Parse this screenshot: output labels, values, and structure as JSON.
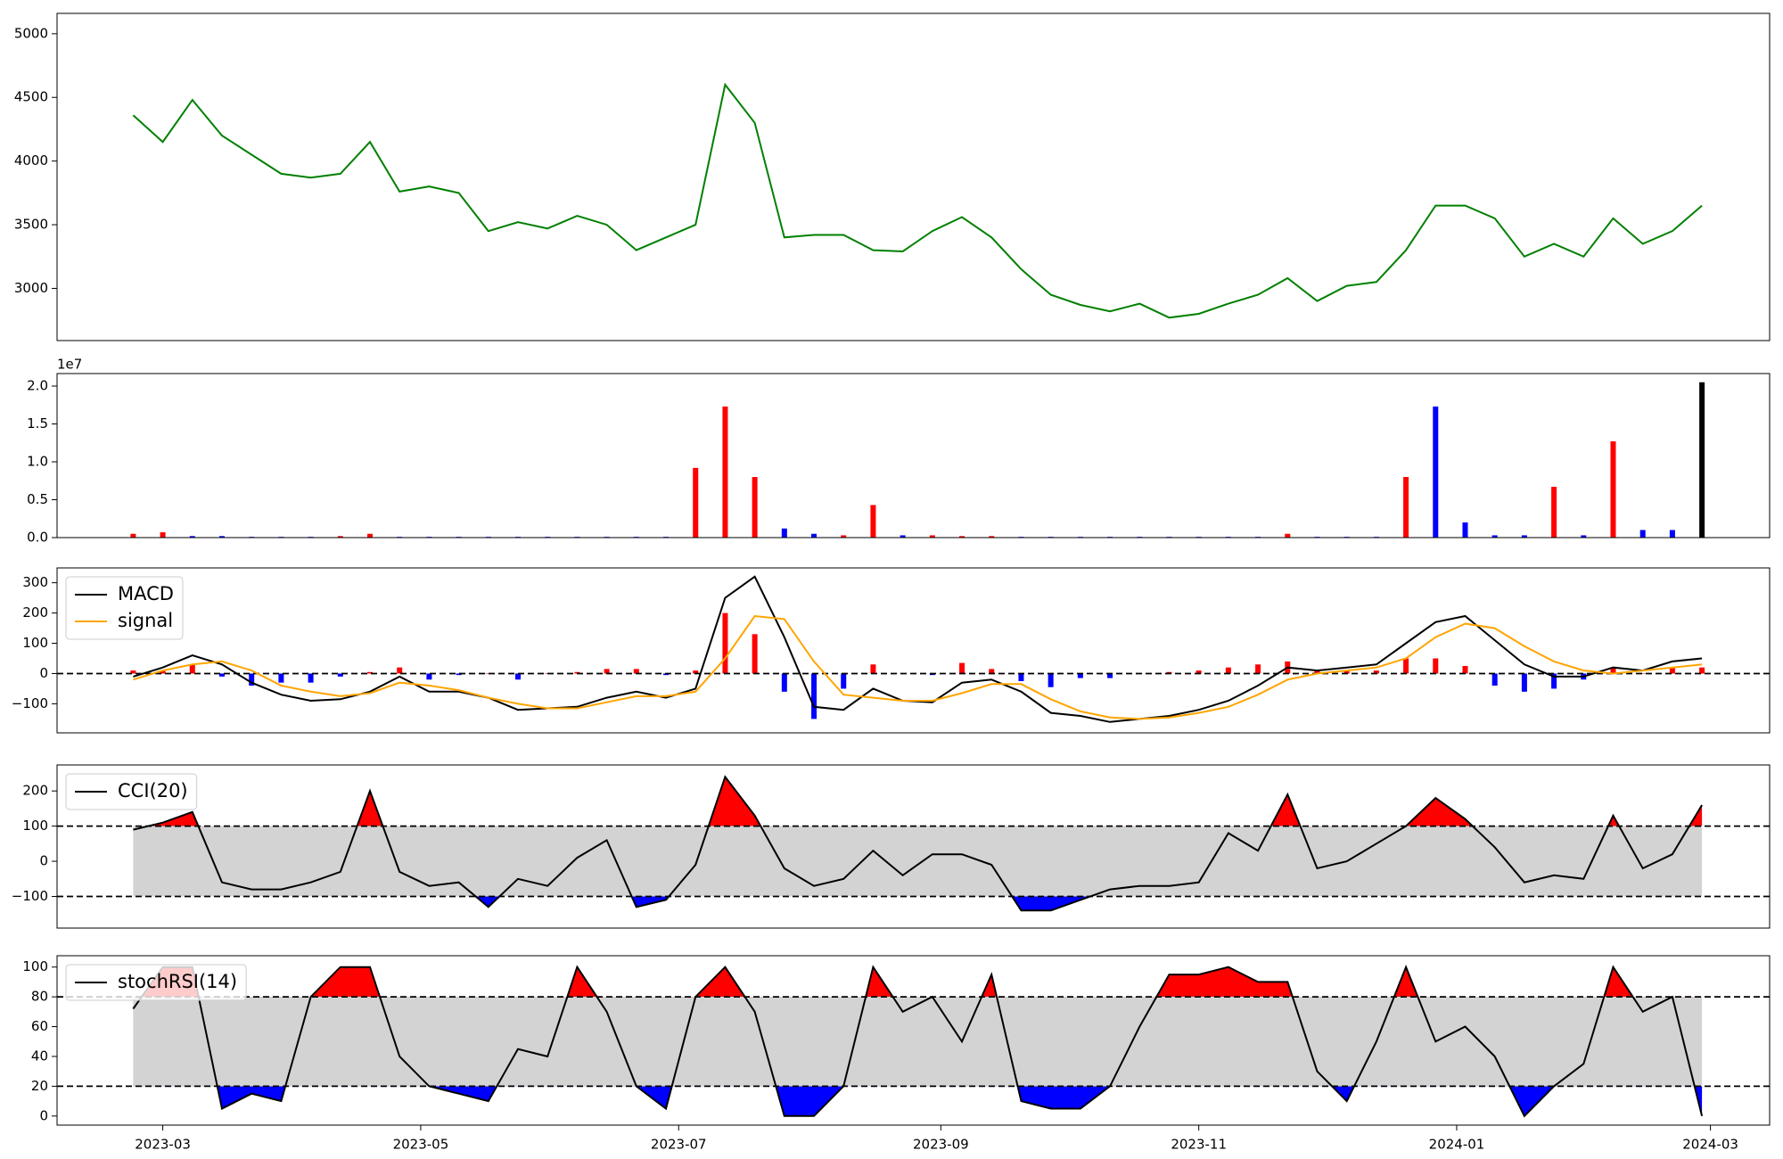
{
  "chart_data": [
    {
      "type": "line",
      "x": [
        "2023-02-22",
        "2023-03-01",
        "2023-03-08",
        "2023-03-15",
        "2023-03-22",
        "2023-03-29",
        "2023-04-05",
        "2023-04-12",
        "2023-04-19",
        "2023-04-26",
        "2023-05-03",
        "2023-05-10",
        "2023-05-17",
        "2023-05-24",
        "2023-05-31",
        "2023-06-07",
        "2023-06-14",
        "2023-06-21",
        "2023-06-28",
        "2023-07-05",
        "2023-07-12",
        "2023-07-19",
        "2023-07-26",
        "2023-08-02",
        "2023-08-09",
        "2023-08-16",
        "2023-08-23",
        "2023-08-30",
        "2023-09-06",
        "2023-09-13",
        "2023-09-20",
        "2023-09-27",
        "2023-10-04",
        "2023-10-11",
        "2023-10-18",
        "2023-10-25",
        "2023-11-01",
        "2023-11-08",
        "2023-11-15",
        "2023-11-22",
        "2023-11-29",
        "2023-12-06",
        "2023-12-13",
        "2023-12-20",
        "2023-12-27",
        "2024-01-03",
        "2024-01-10",
        "2024-01-17",
        "2024-01-24",
        "2024-01-31",
        "2024-02-07",
        "2024-02-14",
        "2024-02-21",
        "2024-02-28"
      ],
      "xlim": [
        "2023-02-04",
        "2024-03-15"
      ],
      "ylim": [
        2590,
        5160
      ],
      "yticks": [
        3000,
        3500,
        4000,
        4500,
        5000
      ],
      "series": [
        {
          "color": "green",
          "values": [
            4360,
            4150,
            4480,
            4200,
            4050,
            3900,
            3870,
            3900,
            4150,
            3760,
            3800,
            3750,
            3450,
            3520,
            3470,
            3570,
            3500,
            3300,
            3400,
            3500,
            4600,
            4300,
            3400,
            3420,
            3420,
            3300,
            3290,
            3450,
            3560,
            3400,
            3150,
            2950,
            2870,
            2820,
            2880,
            2770,
            2800,
            2880,
            2950,
            3080,
            2900,
            3020,
            3050,
            3300,
            3650,
            3650,
            3550,
            3250,
            3350,
            3250,
            3550,
            3350,
            3450,
            3650
          ]
        }
      ]
    },
    {
      "type": "bar",
      "x": [
        "2023-02-22",
        "2023-03-01",
        "2023-03-08",
        "2023-03-15",
        "2023-03-22",
        "2023-03-29",
        "2023-04-05",
        "2023-04-12",
        "2023-04-19",
        "2023-04-26",
        "2023-05-03",
        "2023-05-10",
        "2023-05-17",
        "2023-05-24",
        "2023-05-31",
        "2023-06-07",
        "2023-06-14",
        "2023-06-21",
        "2023-06-28",
        "2023-07-05",
        "2023-07-12",
        "2023-07-19",
        "2023-07-26",
        "2023-08-02",
        "2023-08-09",
        "2023-08-16",
        "2023-08-23",
        "2023-08-30",
        "2023-09-06",
        "2023-09-13",
        "2023-09-20",
        "2023-09-27",
        "2023-10-04",
        "2023-10-11",
        "2023-10-18",
        "2023-10-25",
        "2023-11-01",
        "2023-11-08",
        "2023-11-15",
        "2023-11-22",
        "2023-11-29",
        "2023-12-06",
        "2023-12-13",
        "2023-12-20",
        "2023-12-27",
        "2024-01-03",
        "2024-01-10",
        "2024-01-17",
        "2024-01-24",
        "2024-01-31",
        "2024-02-07",
        "2024-02-14",
        "2024-02-21",
        "2024-02-28"
      ],
      "xlim": [
        "2023-02-04",
        "2024-03-15"
      ],
      "ylim": [
        0,
        2.165
      ],
      "yticks": [
        {
          "value": 0,
          "label": "0.0"
        },
        {
          "value": 0.5,
          "label": "0.5"
        },
        {
          "value": 1,
          "label": "1.0"
        },
        {
          "value": 1.5,
          "label": "1.5"
        },
        {
          "value": 2,
          "label": "2.0"
        }
      ],
      "offset_label": "1e7",
      "series": [
        {
          "type": "bar",
          "values": [
            0.05,
            0.07,
            0.02,
            0.02,
            0.01,
            0.01,
            0.01,
            0.02,
            0.05,
            0.01,
            0.01,
            0.01,
            0.01,
            0.01,
            0.01,
            0.01,
            0.01,
            0.01,
            0.01,
            0.92,
            1.73,
            0.8,
            0.12,
            0.05,
            0.03,
            0.43,
            0.03,
            0.03,
            0.02,
            0.02,
            0.01,
            0.01,
            0.01,
            0.01,
            0.01,
            0.01,
            0.01,
            0.01,
            0.01,
            0.05,
            0.01,
            0.01,
            0.01,
            0.8,
            1.73,
            0.2,
            0.03,
            0.03,
            0.67,
            0.03,
            1.27,
            0.1,
            0.1,
            2.05
          ],
          "colors": [
            "red",
            "red",
            "blue",
            "blue",
            "blue",
            "blue",
            "blue",
            "red",
            "red",
            "blue",
            "blue",
            "blue",
            "blue",
            "blue",
            "blue",
            "blue",
            "blue",
            "blue",
            "blue",
            "red",
            "red",
            "red",
            "blue",
            "blue",
            "red",
            "red",
            "blue",
            "red",
            "red",
            "red",
            "blue",
            "blue",
            "blue",
            "blue",
            "blue",
            "blue",
            "blue",
            "blue",
            "blue",
            "red",
            "blue",
            "blue",
            "blue",
            "red",
            "blue",
            "blue",
            "blue",
            "blue",
            "red",
            "blue",
            "red",
            "blue",
            "blue",
            "black"
          ]
        }
      ]
    },
    {
      "type": "line",
      "x": [
        "2023-02-22",
        "2023-03-01",
        "2023-03-08",
        "2023-03-15",
        "2023-03-22",
        "2023-03-29",
        "2023-04-05",
        "2023-04-12",
        "2023-04-19",
        "2023-04-26",
        "2023-05-03",
        "2023-05-10",
        "2023-05-17",
        "2023-05-24",
        "2023-05-31",
        "2023-06-07",
        "2023-06-14",
        "2023-06-21",
        "2023-06-28",
        "2023-07-05",
        "2023-07-12",
        "2023-07-19",
        "2023-07-26",
        "2023-08-02",
        "2023-08-09",
        "2023-08-16",
        "2023-08-23",
        "2023-08-30",
        "2023-09-06",
        "2023-09-13",
        "2023-09-20",
        "2023-09-27",
        "2023-10-04",
        "2023-10-11",
        "2023-10-18",
        "2023-10-25",
        "2023-11-01",
        "2023-11-08",
        "2023-11-15",
        "2023-11-22",
        "2023-11-29",
        "2023-12-06",
        "2023-12-13",
        "2023-12-20",
        "2023-12-27",
        "2024-01-03",
        "2024-01-10",
        "2024-01-17",
        "2024-01-24",
        "2024-01-31",
        "2024-02-07",
        "2024-02-14",
        "2024-02-21",
        "2024-02-28"
      ],
      "xlim": [
        "2023-02-04",
        "2024-03-15"
      ],
      "ylim": [
        -196,
        349
      ],
      "yticks": [
        {
          "value": -100,
          "label": "−100"
        },
        0,
        100,
        200,
        300
      ],
      "hlines": [
        0
      ],
      "legend": "upper left",
      "series": [
        {
          "type": "bar",
          "positive_color": "red",
          "negative_color": "blue",
          "values": [
            10,
            10,
            30,
            -10,
            -40,
            -30,
            -30,
            -10,
            5,
            20,
            -20,
            -5,
            0,
            -20,
            0,
            5,
            15,
            15,
            -5,
            10,
            200,
            130,
            -60,
            -150,
            -50,
            30,
            0,
            -5,
            35,
            15,
            -25,
            -45,
            -15,
            -15,
            0,
            5,
            10,
            20,
            30,
            40,
            10,
            10,
            10,
            50,
            50,
            25,
            -40,
            -60,
            -50,
            -20,
            20,
            0,
            20,
            20
          ]
        },
        {
          "name": "MACD",
          "color": "black",
          "values": [
            -10,
            20,
            60,
            30,
            -30,
            -70,
            -90,
            -85,
            -60,
            -10,
            -60,
            -60,
            -80,
            -120,
            -115,
            -110,
            -80,
            -60,
            -80,
            -50,
            250,
            320,
            120,
            -110,
            -120,
            -50,
            -90,
            -95,
            -30,
            -20,
            -60,
            -130,
            -140,
            -160,
            -150,
            -140,
            -120,
            -90,
            -40,
            20,
            10,
            20,
            30,
            100,
            170,
            190,
            110,
            30,
            -10,
            -10,
            20,
            10,
            40,
            50
          ]
        },
        {
          "name": "signal",
          "color": "orange",
          "values": [
            -20,
            10,
            30,
            40,
            10,
            -40,
            -60,
            -75,
            -65,
            -30,
            -40,
            -55,
            -80,
            -100,
            -115,
            -115,
            -95,
            -75,
            -75,
            -60,
            50,
            190,
            180,
            40,
            -70,
            -80,
            -90,
            -90,
            -65,
            -35,
            -35,
            -85,
            -125,
            -145,
            -150,
            -145,
            -130,
            -110,
            -70,
            -20,
            0,
            10,
            20,
            50,
            120,
            165,
            150,
            90,
            40,
            10,
            0,
            10,
            20,
            30
          ]
        }
      ]
    },
    {
      "type": "line",
      "x": [
        "2023-02-22",
        "2023-03-01",
        "2023-03-08",
        "2023-03-15",
        "2023-03-22",
        "2023-03-29",
        "2023-04-05",
        "2023-04-12",
        "2023-04-19",
        "2023-04-26",
        "2023-05-03",
        "2023-05-10",
        "2023-05-17",
        "2023-05-24",
        "2023-05-31",
        "2023-06-07",
        "2023-06-14",
        "2023-06-21",
        "2023-06-28",
        "2023-07-05",
        "2023-07-12",
        "2023-07-19",
        "2023-07-26",
        "2023-08-02",
        "2023-08-09",
        "2023-08-16",
        "2023-08-23",
        "2023-08-30",
        "2023-09-06",
        "2023-09-13",
        "2023-09-20",
        "2023-09-27",
        "2023-10-04",
        "2023-10-11",
        "2023-10-18",
        "2023-10-25",
        "2023-11-01",
        "2023-11-08",
        "2023-11-15",
        "2023-11-22",
        "2023-11-29",
        "2023-12-06",
        "2023-12-13",
        "2023-12-20",
        "2023-12-27",
        "2024-01-03",
        "2024-01-10",
        "2024-01-17",
        "2024-01-24",
        "2024-01-31",
        "2024-02-07",
        "2024-02-14",
        "2024-02-21",
        "2024-02-28"
      ],
      "xlim": [
        "2023-02-04",
        "2024-03-15"
      ],
      "ylim": [
        -190,
        274
      ],
      "yticks": [
        {
          "value": -100,
          "label": "−100"
        },
        0,
        100,
        200
      ],
      "hlines": [
        -100,
        100
      ],
      "band_color": "lightgray",
      "above_color": "red",
      "below_color": "blue",
      "legend": "upper left",
      "series": [
        {
          "name": "CCI(20)",
          "color": "black",
          "values": [
            90,
            110,
            140,
            -60,
            -80,
            -80,
            -60,
            -30,
            200,
            -30,
            -70,
            -60,
            -130,
            -50,
            -70,
            10,
            60,
            -130,
            -110,
            -10,
            240,
            130,
            -20,
            -70,
            -50,
            30,
            -40,
            20,
            20,
            -10,
            -140,
            -140,
            -110,
            -80,
            -70,
            -70,
            -60,
            80,
            30,
            190,
            -20,
            0,
            50,
            100,
            180,
            120,
            40,
            -60,
            -40,
            -50,
            130,
            -20,
            20,
            160
          ]
        }
      ]
    },
    {
      "type": "line",
      "x": [
        "2023-02-22",
        "2023-03-01",
        "2023-03-08",
        "2023-03-15",
        "2023-03-22",
        "2023-03-29",
        "2023-04-05",
        "2023-04-12",
        "2023-04-19",
        "2023-04-26",
        "2023-05-03",
        "2023-05-10",
        "2023-05-17",
        "2023-05-24",
        "2023-05-31",
        "2023-06-07",
        "2023-06-14",
        "2023-06-21",
        "2023-06-28",
        "2023-07-05",
        "2023-07-12",
        "2023-07-19",
        "2023-07-26",
        "2023-08-02",
        "2023-08-09",
        "2023-08-16",
        "2023-08-23",
        "2023-08-30",
        "2023-09-06",
        "2023-09-13",
        "2023-09-20",
        "2023-09-27",
        "2023-10-04",
        "2023-10-11",
        "2023-10-18",
        "2023-10-25",
        "2023-11-01",
        "2023-11-08",
        "2023-11-15",
        "2023-11-22",
        "2023-11-29",
        "2023-12-06",
        "2023-12-13",
        "2023-12-20",
        "2023-12-27",
        "2024-01-03",
        "2024-01-10",
        "2024-01-17",
        "2024-01-24",
        "2024-01-31",
        "2024-02-07",
        "2024-02-14",
        "2024-02-21",
        "2024-02-28"
      ],
      "xlim": [
        "2023-02-04",
        "2024-03-15"
      ],
      "xticks": [
        {
          "value": "2023-03-01",
          "label": "2023-03"
        },
        {
          "value": "2023-05-01",
          "label": "2023-05"
        },
        {
          "value": "2023-07-01",
          "label": "2023-07"
        },
        {
          "value": "2023-09-01",
          "label": "2023-09"
        },
        {
          "value": "2023-11-01",
          "label": "2023-11"
        },
        {
          "value": "2024-01-01",
          "label": "2024-01"
        },
        {
          "value": "2024-03-01",
          "label": "2024-03"
        }
      ],
      "ylim": [
        -6.1,
        107.6
      ],
      "yticks": [
        0,
        20,
        40,
        60,
        80,
        100
      ],
      "hlines": [
        20,
        80
      ],
      "band_color": "lightgray",
      "above_color": "red",
      "below_color": "blue",
      "legend": "upper left",
      "series": [
        {
          "name": "stochRSI(14)",
          "color": "black",
          "values": [
            72,
            100,
            100,
            5,
            15,
            10,
            80,
            100,
            100,
            40,
            20,
            15,
            10,
            45,
            40,
            100,
            70,
            20,
            5,
            80,
            100,
            70,
            0,
            0,
            20,
            100,
            70,
            80,
            50,
            95,
            10,
            5,
            5,
            20,
            60,
            95,
            95,
            100,
            90,
            90,
            30,
            10,
            50,
            100,
            50,
            60,
            40,
            0,
            20,
            35,
            100,
            70,
            80,
            0
          ]
        }
      ]
    }
  ]
}
